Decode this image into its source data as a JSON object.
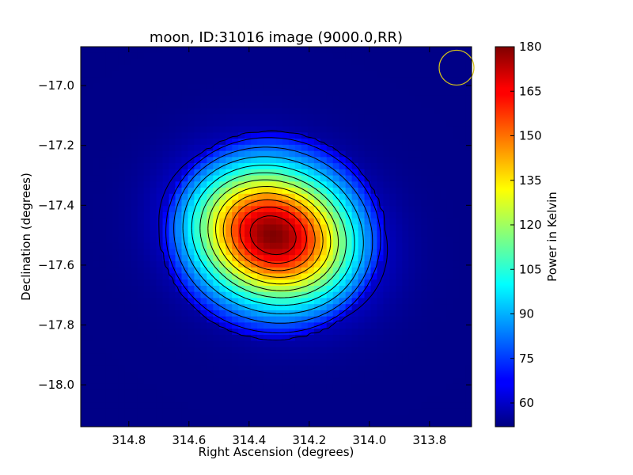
{
  "chart_data": {
    "type": "heatmap",
    "title": "moon, ID:31016 image (9000.0,RR)",
    "xlabel": "Right Ascension (degrees)",
    "ylabel": "Declination (degrees)",
    "xlim": [
      314.96,
      313.66
    ],
    "ylim": [
      -18.14,
      -16.87
    ],
    "x_ticks": [
      314.8,
      314.6,
      314.4,
      314.2,
      314.0,
      313.8
    ],
    "x_tick_labels": [
      "314.8",
      "314.6",
      "314.4",
      "314.2",
      "314.0",
      "313.8"
    ],
    "y_ticks": [
      -17.0,
      -17.2,
      -17.4,
      -17.6,
      -17.8,
      -18.0
    ],
    "y_tick_labels": [
      "−17.0",
      "−17.2",
      "−17.4",
      "−17.6",
      "−17.8",
      "−18.0"
    ],
    "colorbar": {
      "label": "Power in Kelvin",
      "range": [
        52,
        180
      ],
      "ticks": [
        60,
        75,
        90,
        105,
        120,
        135,
        150,
        165,
        180
      ],
      "colormap": "jet"
    },
    "source": {
      "center_ra": 314.32,
      "center_dec": -17.5,
      "peak_kelvin": 180,
      "background_kelvin": 53,
      "core_sigma_ra": 0.19,
      "core_sigma_dec": 0.15,
      "tilt_deg": -20,
      "outer_radius_ra": 0.37,
      "outer_radius_dec": 0.35
    },
    "contour_levels_kelvin": [
      60,
      70,
      80,
      90,
      100,
      110,
      120,
      130,
      140,
      150,
      160,
      170,
      180
    ],
    "beam_marker": {
      "ra": 313.71,
      "dec": -16.94,
      "color": "#d4c21a"
    }
  }
}
